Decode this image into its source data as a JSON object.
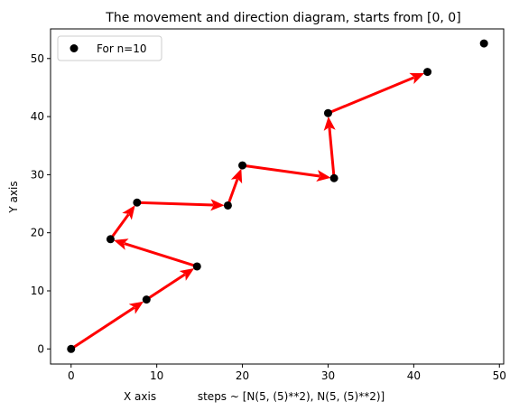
{
  "chart_data": {
    "type": "scatter",
    "title": "The movement and direction diagram, starts from [0, 0]",
    "xlabel": "X axis            steps ~ [N(5, (5)**2), N(5, (5)**2)]",
    "ylabel": "Y axis",
    "xlim": [
      -2.4,
      50.5
    ],
    "ylim": [
      -2.6,
      55.1
    ],
    "xticks": [
      0,
      10,
      20,
      30,
      40,
      50
    ],
    "yticks": [
      0,
      10,
      20,
      30,
      40,
      50
    ],
    "grid": false,
    "legend": {
      "position": "top-left",
      "entries": [
        "For n=10"
      ]
    },
    "series": [
      {
        "name": "For n=10",
        "marker_color": "#000000",
        "x": [
          0,
          8.8,
          14.7,
          4.6,
          7.7,
          18.3,
          20.0,
          30.7,
          30.0,
          41.6,
          48.2
        ],
        "y": [
          0,
          8.5,
          14.2,
          18.9,
          25.2,
          24.7,
          31.6,
          29.4,
          40.6,
          47.7,
          52.6
        ]
      }
    ],
    "arrows": {
      "color": "#ff0000",
      "segments": [
        {
          "from": [
            0,
            0
          ],
          "to": [
            8.8,
            8.5
          ]
        },
        {
          "from": [
            8.8,
            8.5
          ],
          "to": [
            14.7,
            14.2
          ]
        },
        {
          "from": [
            14.7,
            14.2
          ],
          "to": [
            4.6,
            18.9
          ]
        },
        {
          "from": [
            4.6,
            18.9
          ],
          "to": [
            7.7,
            25.2
          ]
        },
        {
          "from": [
            7.7,
            25.2
          ],
          "to": [
            18.3,
            24.7
          ]
        },
        {
          "from": [
            18.3,
            24.7
          ],
          "to": [
            20.0,
            31.6
          ]
        },
        {
          "from": [
            20.0,
            31.6
          ],
          "to": [
            30.7,
            29.4
          ]
        },
        {
          "from": [
            30.7,
            29.4
          ],
          "to": [
            30.0,
            40.6
          ]
        },
        {
          "from": [
            30.0,
            40.6
          ],
          "to": [
            41.6,
            47.7
          ]
        }
      ]
    }
  }
}
